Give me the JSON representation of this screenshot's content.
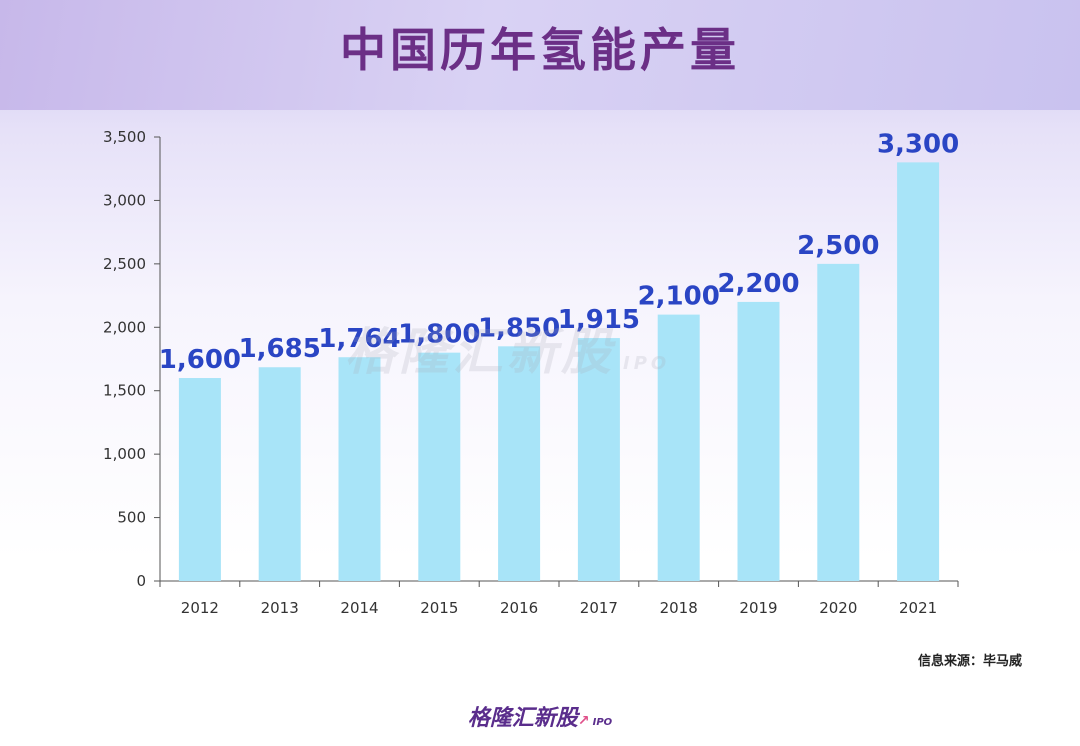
{
  "title": "中国历年氢能产量",
  "watermark": {
    "main": "格隆汇新股",
    "sub": "IPO"
  },
  "source": "信息来源：毕马威",
  "brand": {
    "main": "格隆汇新股",
    "sub": "IPO"
  },
  "colors": {
    "bar": "#a8e4f8",
    "data_label": "#2a45c4",
    "title": "#6b2f86"
  },
  "chart_data": {
    "type": "bar",
    "title": "中国历年氢能产量",
    "categories": [
      "2012",
      "2013",
      "2014",
      "2015",
      "2016",
      "2017",
      "2018",
      "2019",
      "2020",
      "2021"
    ],
    "values": [
      1600,
      1685,
      1764,
      1800,
      1850,
      1915,
      2100,
      2200,
      2500,
      3300
    ],
    "value_labels": [
      "1,600",
      "1,685",
      "1,764",
      "1,800",
      "1,850",
      "1,915",
      "2,100",
      "2,200",
      "2,500",
      "3,300"
    ],
    "yticks": [
      0,
      500,
      1000,
      1500,
      2000,
      2500,
      3000,
      3500
    ],
    "ytick_labels": [
      "0",
      "500",
      "1,000",
      "1,500",
      "2,000",
      "2,500",
      "3,000",
      "3,500"
    ],
    "ylim": [
      0,
      3500
    ],
    "xlabel": "",
    "ylabel": "",
    "grid": false,
    "legend": "none"
  }
}
